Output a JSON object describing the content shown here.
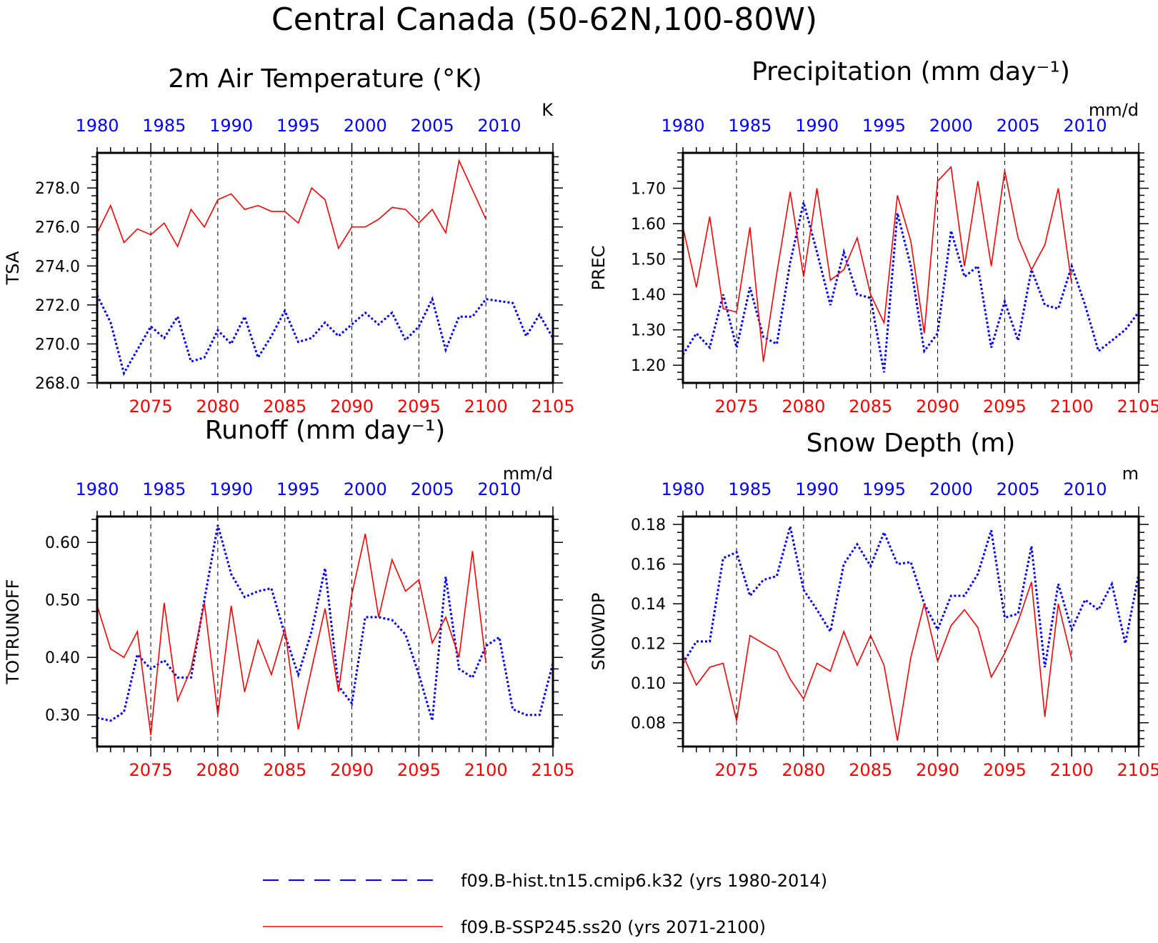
{
  "figure": {
    "title": "Central Canada (50-62N,100-80W)"
  },
  "colors": {
    "hist": "#0000ff",
    "ssp": "#ff0000",
    "axis": "#000000",
    "grid": "#000000"
  },
  "legend": {
    "hist_label": "f09.B-hist.tn15.cmip6.k32 (yrs 1980-2014)",
    "ssp_label": "f09.B-SSP245.ss20 (yrs 2071-2100)"
  },
  "chart_data": [
    {
      "type": "line",
      "title": "2m Air Temperature (°K)",
      "ylabel": "TSA",
      "units": "K",
      "ylim": [
        268.0,
        279.8
      ],
      "yticks": [
        268.0,
        270.0,
        272.0,
        274.0,
        276.0,
        278.0
      ],
      "yfmt": 1,
      "bottom_xticks": [
        "2075",
        "2080",
        "2085",
        "2090",
        "2095",
        "2100",
        "2105"
      ],
      "top_xticks": [
        "1980",
        "1985",
        "1990",
        "1995",
        "2000",
        "2005",
        "2010"
      ],
      "series": [
        {
          "name": "f09.B-hist.tn15.cmip6.k32 (yrs 1980-2014)",
          "style": "hist",
          "start_year": 1980,
          "values": [
            272.5,
            271.1,
            268.5,
            269.7,
            270.9,
            270.3,
            271.4,
            269.1,
            269.3,
            270.7,
            270.0,
            271.4,
            269.3,
            270.4,
            271.7,
            270.1,
            270.3,
            271.1,
            270.4,
            271.0,
            271.6,
            271.0,
            271.6,
            270.2,
            270.9,
            272.3,
            269.7,
            271.4,
            271.4,
            272.3,
            272.2,
            272.1,
            270.4,
            271.5,
            270.3
          ]
        },
        {
          "name": "f09.B-SSP245.ss20 (yrs 2071-2100)",
          "style": "ssp",
          "start_year": 2071,
          "values": [
            275.7,
            277.1,
            275.2,
            275.9,
            275.6,
            276.2,
            275.0,
            276.9,
            276.0,
            277.4,
            277.7,
            276.9,
            277.1,
            276.8,
            276.8,
            276.2,
            278.0,
            277.4,
            274.9,
            276.0,
            276.0,
            276.4,
            277.0,
            276.9,
            276.2,
            276.9,
            275.7,
            279.4,
            277.9,
            276.4
          ]
        }
      ]
    },
    {
      "type": "line",
      "title": "Precipitation (mm day⁻¹)",
      "ylabel": "PREC",
      "units": "mm/d",
      "ylim": [
        1.15,
        1.8
      ],
      "yticks": [
        1.2,
        1.3,
        1.4,
        1.5,
        1.6,
        1.7
      ],
      "yfmt": 2,
      "bottom_xticks": [
        "2075",
        "2080",
        "2085",
        "2090",
        "2095",
        "2100",
        "2105"
      ],
      "top_xticks": [
        "1980",
        "1985",
        "1990",
        "1995",
        "2000",
        "2005",
        "2010"
      ],
      "series": [
        {
          "name": "f09.B-hist.tn15.cmip6.k32 (yrs 1980-2014)",
          "style": "hist",
          "start_year": 1980,
          "values": [
            1.23,
            1.29,
            1.25,
            1.4,
            1.25,
            1.42,
            1.28,
            1.26,
            1.49,
            1.66,
            1.52,
            1.37,
            1.52,
            1.4,
            1.39,
            1.18,
            1.63,
            1.48,
            1.24,
            1.29,
            1.58,
            1.45,
            1.48,
            1.25,
            1.38,
            1.27,
            1.47,
            1.37,
            1.36,
            1.48,
            1.37,
            1.24,
            1.27,
            1.3,
            1.35
          ]
        },
        {
          "name": "f09.B-SSP245.ss20 (yrs 2071-2100)",
          "style": "ssp",
          "start_year": 2071,
          "values": [
            1.59,
            1.42,
            1.62,
            1.36,
            1.35,
            1.59,
            1.21,
            1.46,
            1.69,
            1.45,
            1.7,
            1.44,
            1.47,
            1.56,
            1.4,
            1.32,
            1.68,
            1.55,
            1.29,
            1.72,
            1.76,
            1.48,
            1.72,
            1.48,
            1.75,
            1.56,
            1.47,
            1.54,
            1.7,
            1.43
          ]
        }
      ]
    },
    {
      "type": "line",
      "title": "Runoff (mm day⁻¹)",
      "ylabel": "TOTRUNOFF",
      "units": "mm/d",
      "ylim": [
        0.245,
        0.645
      ],
      "yticks": [
        0.3,
        0.4,
        0.5,
        0.6
      ],
      "yfmt": 2,
      "bottom_xticks": [
        "2075",
        "2080",
        "2085",
        "2090",
        "2095",
        "2100",
        "2105"
      ],
      "top_xticks": [
        "1980",
        "1985",
        "1990",
        "1995",
        "2000",
        "2005",
        "2010"
      ],
      "series": [
        {
          "name": "f09.B-hist.tn15.cmip6.k32 (yrs 1980-2014)",
          "style": "hist",
          "start_year": 1980,
          "values": [
            0.295,
            0.29,
            0.305,
            0.405,
            0.38,
            0.395,
            0.365,
            0.365,
            0.5,
            0.63,
            0.545,
            0.505,
            0.515,
            0.52,
            0.44,
            0.37,
            0.445,
            0.555,
            0.35,
            0.32,
            0.47,
            0.47,
            0.465,
            0.44,
            0.37,
            0.29,
            0.54,
            0.38,
            0.365,
            0.42,
            0.435,
            0.31,
            0.3,
            0.3,
            0.39
          ]
        },
        {
          "name": "f09.B-SSP245.ss20 (yrs 2071-2100)",
          "style": "ssp",
          "start_year": 2071,
          "values": [
            0.49,
            0.415,
            0.4,
            0.445,
            0.265,
            0.495,
            0.325,
            0.38,
            0.495,
            0.3,
            0.49,
            0.34,
            0.43,
            0.37,
            0.45,
            0.275,
            0.38,
            0.485,
            0.34,
            0.51,
            0.615,
            0.47,
            0.57,
            0.515,
            0.535,
            0.425,
            0.47,
            0.4,
            0.585,
            0.39
          ]
        }
      ]
    },
    {
      "type": "line",
      "title": "Snow Depth (m)",
      "ylabel": "SNOWDP",
      "units": "m",
      "ylim": [
        0.068,
        0.184
      ],
      "yticks": [
        0.08,
        0.1,
        0.12,
        0.14,
        0.16,
        0.18
      ],
      "yfmt": 2,
      "bottom_xticks": [
        "2075",
        "2080",
        "2085",
        "2090",
        "2095",
        "2100",
        "2105"
      ],
      "top_xticks": [
        "1980",
        "1985",
        "1990",
        "1995",
        "2000",
        "2005",
        "2010"
      ],
      "series": [
        {
          "name": "f09.B-hist.tn15.cmip6.k32 (yrs 1980-2014)",
          "style": "hist",
          "start_year": 1980,
          "values": [
            0.11,
            0.121,
            0.121,
            0.163,
            0.166,
            0.144,
            0.152,
            0.154,
            0.179,
            0.147,
            0.137,
            0.126,
            0.16,
            0.17,
            0.159,
            0.176,
            0.16,
            0.161,
            0.14,
            0.127,
            0.144,
            0.144,
            0.155,
            0.177,
            0.133,
            0.135,
            0.169,
            0.108,
            0.15,
            0.127,
            0.142,
            0.137,
            0.15,
            0.12,
            0.155
          ]
        },
        {
          "name": "f09.B-SSP245.ss20 (yrs 2071-2100)",
          "style": "ssp",
          "start_year": 2071,
          "values": [
            0.114,
            0.099,
            0.108,
            0.11,
            0.081,
            0.124,
            0.12,
            0.116,
            0.102,
            0.092,
            0.11,
            0.106,
            0.126,
            0.109,
            0.124,
            0.109,
            0.071,
            0.113,
            0.14,
            0.111,
            0.129,
            0.137,
            0.128,
            0.103,
            0.115,
            0.131,
            0.151,
            0.083,
            0.14,
            0.112
          ]
        }
      ]
    }
  ]
}
